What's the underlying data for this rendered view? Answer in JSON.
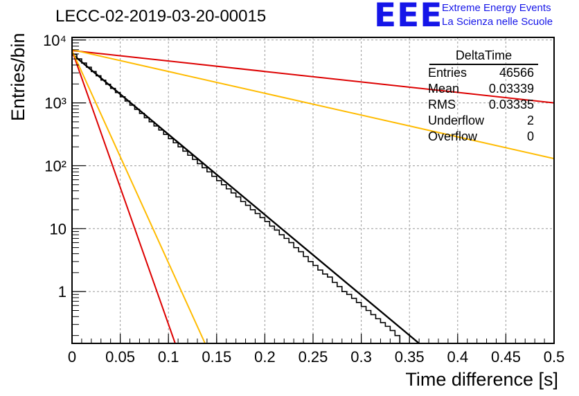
{
  "header": {
    "title": "LECC-02-2019-03-20-00015",
    "logo_mark": "EEE",
    "logo_line1": "Extreme Energy Events",
    "logo_line2": "La Scienza nelle Scuole"
  },
  "stats_box": {
    "name": "DeltaTime",
    "rows": [
      {
        "label": "Entries",
        "value": "46566"
      },
      {
        "label": "Mean",
        "value": "0.03339"
      },
      {
        "label": "RMS",
        "value": "0.03335"
      },
      {
        "label": "Underflow",
        "value": "2"
      },
      {
        "label": "Overflow",
        "value": "0"
      }
    ]
  },
  "chart_data": {
    "type": "line",
    "xlabel": "Time difference [s]",
    "ylabel": "Entries/bin",
    "xlim": [
      0,
      0.5
    ],
    "ylim": [
      0.15,
      11000
    ],
    "yscale": "log",
    "grid": true,
    "x_ticks": [
      "0",
      "0.05",
      "0.1",
      "0.15",
      "0.2",
      "0.25",
      "0.3",
      "0.35",
      "0.4",
      "0.45",
      "0.5"
    ],
    "y_ticks": [
      {
        "value": 1,
        "label": "1"
      },
      {
        "value": 10,
        "label": "10"
      },
      {
        "value": 100,
        "label": "10²"
      },
      {
        "value": 1000,
        "label": "10³"
      },
      {
        "value": 10000,
        "label": "10⁴"
      }
    ],
    "histogram": {
      "bin_width": 0.005,
      "values": [
        5900,
        5000,
        4300,
        3700,
        3150,
        2700,
        2300,
        1980,
        1700,
        1460,
        1250,
        1070,
        920,
        790,
        680,
        580,
        500,
        430,
        370,
        315,
        270,
        232,
        200,
        171,
        147,
        126,
        108,
        93,
        80,
        68,
        58,
        50,
        43,
        37,
        32,
        27,
        23.5,
        20,
        17.4,
        15,
        13,
        11,
        9.5,
        8,
        7,
        6,
        5,
        4.3,
        3.6,
        3,
        2.6,
        2.2,
        1.9,
        1.7,
        1.4,
        1.2,
        1,
        0.9,
        0.78,
        0.67,
        0.58,
        0.5,
        0.43,
        0.37,
        0.32,
        0.28,
        0.24,
        0.2
      ]
    },
    "fits": [
      {
        "color": "#000000",
        "points": [
          [
            0,
            6000
          ],
          [
            0.36,
            0.15
          ]
        ]
      },
      {
        "color": "#dd0000",
        "points": [
          [
            0,
            6800
          ],
          [
            0.5,
            1000
          ]
        ]
      },
      {
        "color": "#dd0000",
        "points": [
          [
            0,
            6800
          ],
          [
            0.107,
            0.15
          ]
        ]
      },
      {
        "color": "#ffbb00",
        "points": [
          [
            0,
            7000
          ],
          [
            0.5,
            130
          ]
        ]
      },
      {
        "color": "#ffbb00",
        "points": [
          [
            0,
            6800
          ],
          [
            0.138,
            0.15
          ]
        ]
      }
    ]
  }
}
